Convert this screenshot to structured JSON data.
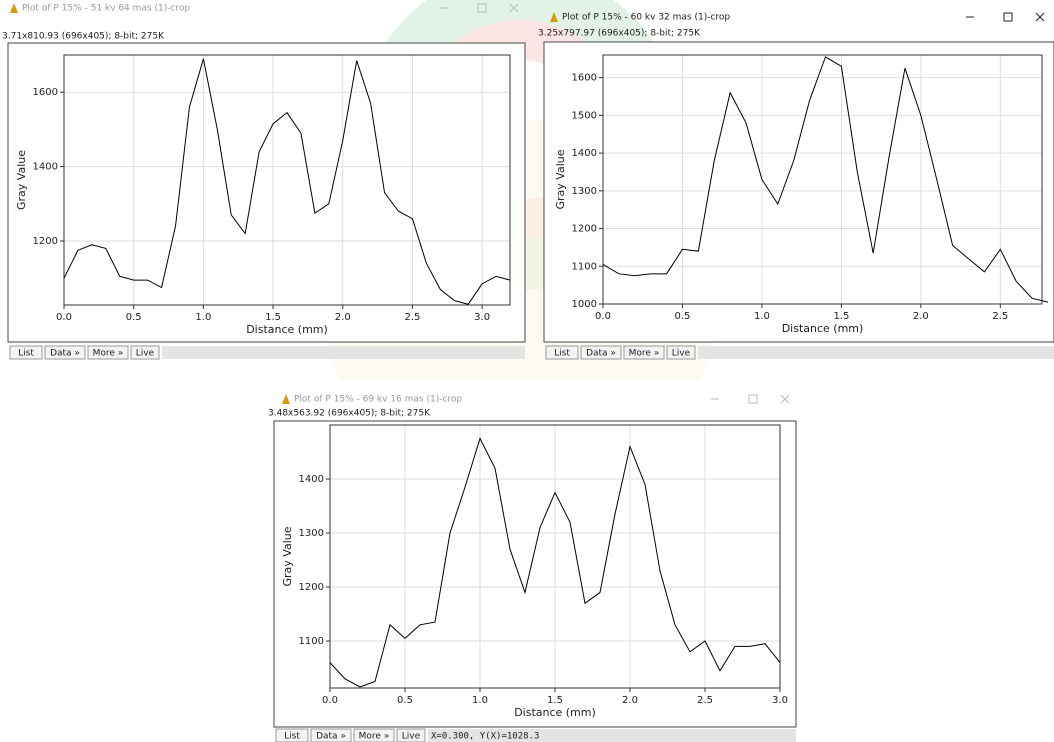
{
  "windows": [
    {
      "title": "Plot of P 15% - 51 kv 64 mas (1)-crop",
      "info": "3.71x810.93  (696x405); 8-bit; 275K",
      "buttons": [
        "List",
        "Data »",
        "More »",
        "Live"
      ]
    },
    {
      "title": "Plot of P 15% - 60 kv 32 mas (1)-crop",
      "info": "3.25x797.97  (696x405); 8-bit; 275K",
      "buttons": [
        "List",
        "Data »",
        "More »",
        "Live"
      ]
    },
    {
      "title": "Plot of P 15% - 69 kv 16 mas (1)-crop",
      "info": "3.48x563.92  (696x405); 8-bit; 275K",
      "buttons": [
        "List",
        "Data »",
        "More »",
        "Live"
      ],
      "status": "X=0.300, Y(X)=1028.3"
    }
  ],
  "chart_data": [
    {
      "type": "line",
      "xlabel": "Distance (mm)",
      "ylabel": "Gray Value",
      "color": "#000000",
      "grid": true,
      "x": [
        0,
        0.1,
        0.2,
        0.3,
        0.4,
        0.5,
        0.6,
        0.7,
        0.8,
        0.9,
        1.0,
        1.1,
        1.2,
        1.3,
        1.4,
        1.5,
        1.6,
        1.7,
        1.8,
        1.9,
        2.0,
        2.1,
        2.2,
        2.3,
        2.4,
        2.5,
        2.6,
        2.7,
        2.8,
        2.9,
        3.0,
        3.1,
        3.2
      ],
      "values": [
        1100,
        1175,
        1190,
        1180,
        1105,
        1095,
        1095,
        1075,
        1240,
        1560,
        1690,
        1500,
        1270,
        1220,
        1440,
        1515,
        1545,
        1490,
        1275,
        1300,
        1470,
        1685,
        1570,
        1330,
        1280,
        1260,
        1140,
        1070,
        1040,
        1030,
        1085,
        1105,
        1095
      ],
      "xlim": [
        0,
        3.2
      ],
      "ylim": [
        1028,
        1700
      ],
      "xticks": [
        {
          "value": 0,
          "label": "0.0"
        },
        0.5,
        {
          "value": 1,
          "label": "1.0"
        },
        1.5,
        {
          "value": 2,
          "label": "2.0"
        },
        2.5,
        {
          "value": 3,
          "label": "3.0"
        }
      ],
      "yticks": [
        1200,
        1400,
        1600
      ]
    },
    {
      "type": "line",
      "xlabel": "Distance (mm)",
      "ylabel": "Gray Value",
      "color": "#000000",
      "grid": true,
      "x": [
        0,
        0.1,
        0.2,
        0.3,
        0.4,
        0.5,
        0.6,
        0.7,
        0.8,
        0.9,
        1.0,
        1.1,
        1.2,
        1.3,
        1.4,
        1.5,
        1.6,
        1.7,
        1.8,
        1.9,
        2.0,
        2.1,
        2.2,
        2.3,
        2.4,
        2.5,
        2.6,
        2.7,
        2.8
      ],
      "values": [
        1105,
        1080,
        1075,
        1080,
        1080,
        1145,
        1140,
        1380,
        1560,
        1480,
        1330,
        1265,
        1380,
        1540,
        1655,
        1630,
        1350,
        1135,
        1390,
        1625,
        1500,
        1330,
        1155,
        1120,
        1085,
        1145,
        1060,
        1015,
        1005
      ],
      "xlim": [
        0,
        2.8
      ],
      "ylim": [
        1000,
        1660
      ],
      "xticks": [
        {
          "value": 0,
          "label": "0.0"
        },
        0.5,
        {
          "value": 1,
          "label": "1.0"
        },
        1.5,
        {
          "value": 2,
          "label": "2.0"
        },
        2.5
      ],
      "yticks": [
        1000,
        1100,
        1200,
        1300,
        1400,
        1500,
        1600
      ]
    },
    {
      "type": "line",
      "xlabel": "Distance (mm)",
      "ylabel": "Gray Value",
      "color": "#000000",
      "grid": true,
      "x": [
        0,
        0.1,
        0.2,
        0.3,
        0.4,
        0.5,
        0.6,
        0.7,
        0.8,
        0.9,
        1.0,
        1.1,
        1.2,
        1.3,
        1.4,
        1.5,
        1.6,
        1.7,
        1.8,
        1.9,
        2.0,
        2.1,
        2.2,
        2.3,
        2.4,
        2.5,
        2.6,
        2.7,
        2.8,
        2.9,
        3.0
      ],
      "values": [
        1060,
        1030,
        1015,
        1025,
        1130,
        1105,
        1130,
        1135,
        1300,
        1385,
        1475,
        1420,
        1270,
        1190,
        1310,
        1375,
        1320,
        1170,
        1190,
        1335,
        1460,
        1390,
        1230,
        1130,
        1080,
        1100,
        1045,
        1090,
        1090,
        1095,
        1060
      ],
      "xlim": [
        0,
        3
      ],
      "ylim": [
        1013,
        1500
      ],
      "xticks": [
        {
          "value": 0,
          "label": "0.0"
        },
        0.5,
        {
          "value": 1,
          "label": "1.0"
        },
        1.5,
        {
          "value": 2,
          "label": "2.0"
        },
        2.5,
        {
          "value": 3,
          "label": "3.0"
        }
      ],
      "yticks": [
        1100,
        1200,
        1300,
        1400
      ]
    }
  ]
}
